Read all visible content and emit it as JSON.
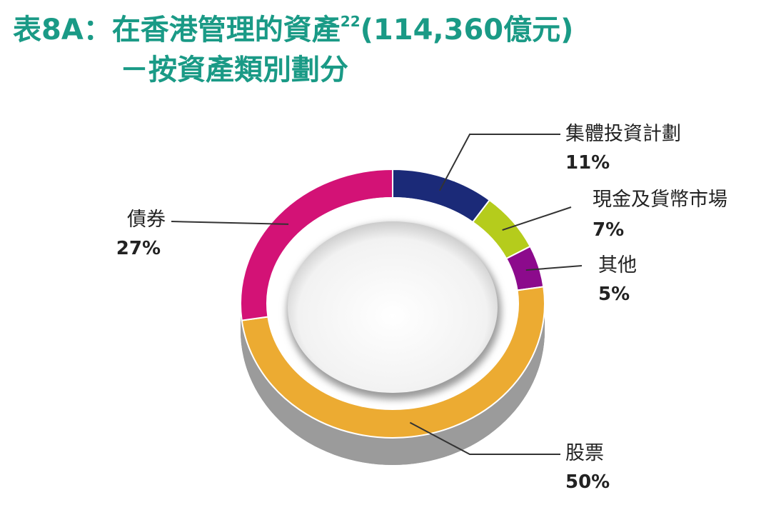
{
  "title": {
    "prefix": "表8A：在香港管理的資產",
    "footnote": "22",
    "suffix": "(114,360億元)",
    "line2": "－按資產類別劃分"
  },
  "chart_data": {
    "type": "pie",
    "style": "3d-donut",
    "categories": [
      "集體投資計劃",
      "現金及貨幣市場",
      "其他",
      "股票",
      "債券"
    ],
    "values": [
      11,
      7,
      5,
      50,
      27
    ],
    "value_labels": [
      "11%",
      "7%",
      "5%",
      "50%",
      "27%"
    ],
    "colors": [
      "#1b2a78",
      "#b5cc1c",
      "#8c0a8c",
      "#ecab32",
      "#d31276"
    ],
    "legend": "callouts"
  }
}
